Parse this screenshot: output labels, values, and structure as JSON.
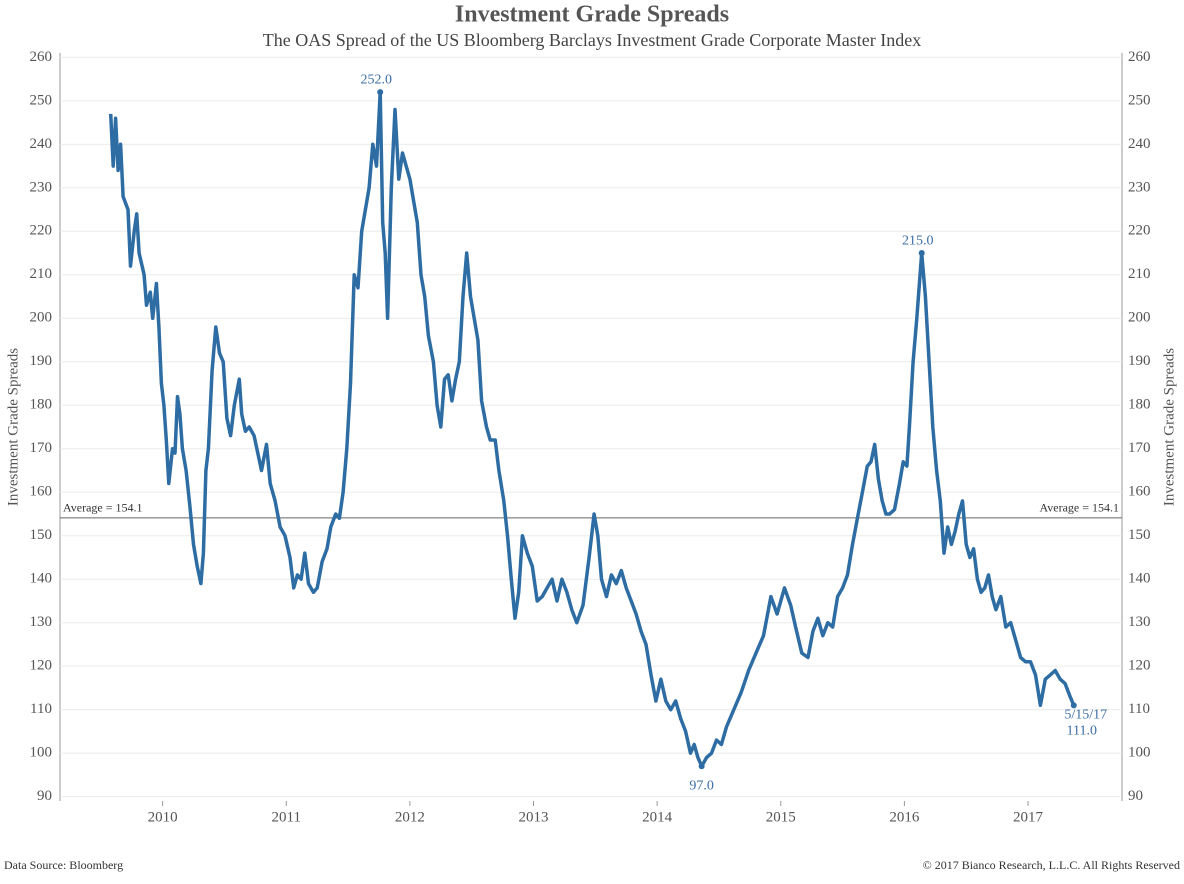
{
  "chart_data": {
    "type": "line",
    "title": "Investment Grade Spreads",
    "subtitle": "The OAS Spread of the US Bloomberg Barclays Investment Grade Corporate Master Index",
    "y_label": "Investment Grade Spreads",
    "source": "Data Source: Bloomberg",
    "copyright": "© 2017 Bianco Research, L.L.C. All Rights Reserved",
    "color": "#2e6da4",
    "grid": true,
    "xlim": [
      2009.17,
      2017.76
    ],
    "xticks": [
      2010,
      2011,
      2012,
      2013,
      2014,
      2015,
      2016,
      2017
    ],
    "ylim": [
      89,
      261
    ],
    "yticks": [
      90,
      100,
      110,
      120,
      130,
      140,
      150,
      160,
      170,
      180,
      190,
      200,
      210,
      220,
      230,
      240,
      250,
      260
    ],
    "average": {
      "value": 154.1,
      "label": "Average = 154.1"
    },
    "annotations": [
      {
        "x": 2011.76,
        "value": 252,
        "label": "252.0"
      },
      {
        "x": 2016.14,
        "value": 215,
        "label": "215.0"
      },
      {
        "x": 2014.36,
        "value": 97,
        "label": "97.0"
      },
      {
        "x": 2017.37,
        "value": 111,
        "label": "111.0"
      }
    ],
    "last_date": "5/15/17",
    "x": [
      2009.58,
      2009.6,
      2009.62,
      2009.64,
      2009.66,
      2009.68,
      2009.72,
      2009.74,
      2009.77,
      2009.79,
      2009.81,
      2009.85,
      2009.87,
      2009.9,
      2009.92,
      2009.95,
      2009.97,
      2009.99,
      2010.01,
      2010.03,
      2010.05,
      2010.08,
      2010.1,
      2010.12,
      2010.14,
      2010.16,
      2010.19,
      2010.22,
      2010.25,
      2010.28,
      2010.31,
      2010.33,
      2010.35,
      2010.37,
      2010.4,
      2010.43,
      2010.46,
      2010.49,
      2010.52,
      2010.55,
      2010.58,
      2010.62,
      2010.64,
      2010.67,
      2010.7,
      2010.74,
      2010.77,
      2010.8,
      2010.84,
      2010.87,
      2010.91,
      2010.95,
      2010.99,
      2011.03,
      2011.06,
      2011.09,
      2011.12,
      2011.15,
      2011.18,
      2011.22,
      2011.25,
      2011.29,
      2011.33,
      2011.36,
      2011.4,
      2011.43,
      2011.46,
      2011.49,
      2011.52,
      2011.55,
      2011.58,
      2011.61,
      2011.64,
      2011.67,
      2011.7,
      2011.73,
      2011.76,
      2011.78,
      2011.8,
      2011.82,
      2011.85,
      2011.88,
      2011.91,
      2011.94,
      2011.97,
      2012.0,
      2012.03,
      2012.06,
      2012.09,
      2012.12,
      2012.15,
      2012.19,
      2012.22,
      2012.25,
      2012.28,
      2012.31,
      2012.34,
      2012.37,
      2012.4,
      2012.43,
      2012.46,
      2012.49,
      2012.52,
      2012.55,
      2012.58,
      2012.62,
      2012.65,
      2012.69,
      2012.72,
      2012.76,
      2012.79,
      2012.82,
      2012.85,
      2012.88,
      2012.91,
      2012.95,
      2012.99,
      2013.03,
      2013.07,
      2013.11,
      2013.15,
      2013.19,
      2013.23,
      2013.27,
      2013.31,
      2013.35,
      2013.4,
      2013.45,
      2013.49,
      2013.52,
      2013.55,
      2013.59,
      2013.63,
      2013.67,
      2013.71,
      2013.75,
      2013.79,
      2013.83,
      2013.87,
      2013.91,
      2013.95,
      2013.99,
      2014.03,
      2014.07,
      2014.11,
      2014.15,
      2014.19,
      2014.23,
      2014.27,
      2014.3,
      2014.33,
      2014.36,
      2014.4,
      2014.44,
      2014.48,
      2014.52,
      2014.56,
      2014.62,
      2014.68,
      2014.74,
      2014.8,
      2014.86,
      2014.92,
      2014.97,
      2015.03,
      2015.08,
      2015.12,
      2015.17,
      2015.22,
      2015.26,
      2015.3,
      2015.34,
      2015.38,
      2015.42,
      2015.46,
      2015.5,
      2015.54,
      2015.58,
      2015.62,
      2015.66,
      2015.7,
      2015.73,
      2015.76,
      2015.79,
      2015.82,
      2015.85,
      2015.88,
      2015.92,
      2015.96,
      2015.99,
      2016.02,
      2016.04,
      2016.07,
      2016.1,
      2016.14,
      2016.17,
      2016.2,
      2016.23,
      2016.26,
      2016.29,
      2016.32,
      2016.35,
      2016.38,
      2016.41,
      2016.44,
      2016.47,
      2016.5,
      2016.53,
      2016.56,
      2016.59,
      2016.62,
      2016.65,
      2016.68,
      2016.71,
      2016.74,
      2016.78,
      2016.82,
      2016.86,
      2016.9,
      2016.94,
      2016.98,
      2017.02,
      2017.06,
      2017.1,
      2017.14,
      2017.18,
      2017.22,
      2017.26,
      2017.3,
      2017.34,
      2017.37
    ],
    "values": [
      247,
      235,
      246,
      234,
      240,
      228,
      225,
      212,
      220,
      224,
      215,
      210,
      203,
      206,
      200,
      208,
      198,
      185,
      180,
      172,
      162,
      170,
      169,
      182,
      178,
      170,
      165,
      157,
      148,
      143,
      139,
      146,
      165,
      170,
      188,
      198,
      192,
      190,
      177,
      173,
      180,
      186,
      178,
      174,
      175,
      173,
      169,
      165,
      171,
      162,
      158,
      152,
      150,
      145,
      138,
      141,
      140,
      146,
      139,
      137,
      138,
      144,
      147,
      152,
      155,
      154,
      160,
      170,
      185,
      210,
      207,
      220,
      225,
      230,
      240,
      235,
      252,
      222,
      215,
      200,
      230,
      248,
      232,
      238,
      235,
      232,
      227,
      222,
      210,
      205,
      196,
      190,
      180,
      175,
      186,
      187,
      181,
      186,
      190,
      205,
      215,
      205,
      200,
      195,
      181,
      175,
      172,
      172,
      165,
      158,
      150,
      140,
      131,
      137,
      150,
      146,
      143,
      135,
      136,
      138,
      140,
      135,
      140,
      137,
      133,
      130,
      134,
      145,
      155,
      150,
      140,
      136,
      141,
      139,
      142,
      138,
      135,
      132,
      128,
      125,
      118,
      112,
      117,
      112,
      110,
      112,
      108,
      105,
      100,
      102,
      99,
      97,
      99,
      100,
      103,
      102,
      106,
      110,
      114,
      119,
      123,
      127,
      136,
      132,
      138,
      134,
      129,
      123,
      122,
      128,
      131,
      127,
      130,
      129,
      136,
      138,
      141,
      148,
      154,
      160,
      166,
      167,
      171,
      163,
      158,
      155,
      155,
      156,
      162,
      167,
      166,
      175,
      190,
      200,
      215,
      205,
      190,
      175,
      165,
      158,
      146,
      152,
      148,
      151,
      155,
      158,
      148,
      145,
      147,
      140,
      137,
      138,
      141,
      136,
      133,
      136,
      129,
      130,
      126,
      122,
      121,
      121,
      118,
      111,
      117,
      118,
      119,
      117,
      116,
      113,
      111
    ]
  }
}
